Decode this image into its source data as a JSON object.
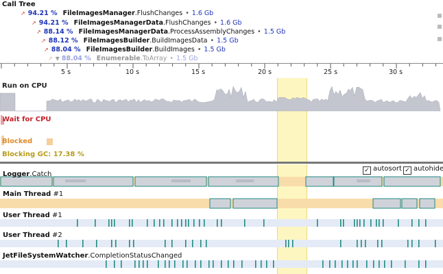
{
  "call_tree": {
    "title": "Call Tree",
    "rows": [
      {
        "pct": "94.21 %",
        "cls": "FileImagesManager",
        "method": ".FlushChanges",
        "mem": "1.6 Gb"
      },
      {
        "pct": "94.21 %",
        "cls": "FileImagesManagerData",
        "method": ".FlushChanges",
        "mem": "1.6 Gb"
      },
      {
        "pct": "88.14 %",
        "cls": "FileImagesManagerData",
        "method": ".ProcessAssemblyChanges",
        "mem": "1.5 Gb"
      },
      {
        "pct": "88.12 %",
        "cls": "FileImagesBuilder",
        "method": ".BuildImagesData",
        "mem": "1.5 Gb"
      },
      {
        "pct": "88.04 %",
        "cls": "FileImagesBuilder",
        "method": ".BuildImages",
        "mem": "1.5 Gb"
      },
      {
        "pct": "88.04 %",
        "cls": "Enumerable",
        "method": ".ToArray",
        "mem": "1.5 Gb"
      }
    ],
    "separator": "•"
  },
  "timeline": {
    "ticks": [
      "5 s",
      "10 s",
      "15 s",
      "20 s",
      "25 s",
      "30 s"
    ]
  },
  "cpu_panel": {
    "run_on_cpu": "Run on CPU",
    "wait_for_cpu": "Wait for CPU",
    "blocked": "Blocked",
    "blocking_gc": "Blocking GC: 17.38 %"
  },
  "options": {
    "autosort_label": "autosort",
    "autosort_checked": true,
    "autohide_label": "autohide",
    "autohide_checked": true,
    "check_glyph": "✓"
  },
  "threads": [
    {
      "name_bold": "Logger",
      "name_rest": ".Catch"
    },
    {
      "name_bold": "Main Thread",
      "name_rest": " #1"
    },
    {
      "name_bold": "User Thread",
      "name_rest": " #1"
    },
    {
      "name_bold": "User Thread",
      "name_rest": " #2"
    },
    {
      "name_bold": "JetFileSystemWatcher",
      "name_rest": ".CompletionStatusChanged"
    }
  ],
  "colors": {
    "pct_blue": "#1f35b8",
    "cpu_gray": "#c4c6cf",
    "lane_orange": "#f8dcaa",
    "lane_blue": "#e4ebf6",
    "teal": "#1f8a82",
    "wait_red": "#e9a0a3",
    "highlight": "#fdf6c0"
  }
}
